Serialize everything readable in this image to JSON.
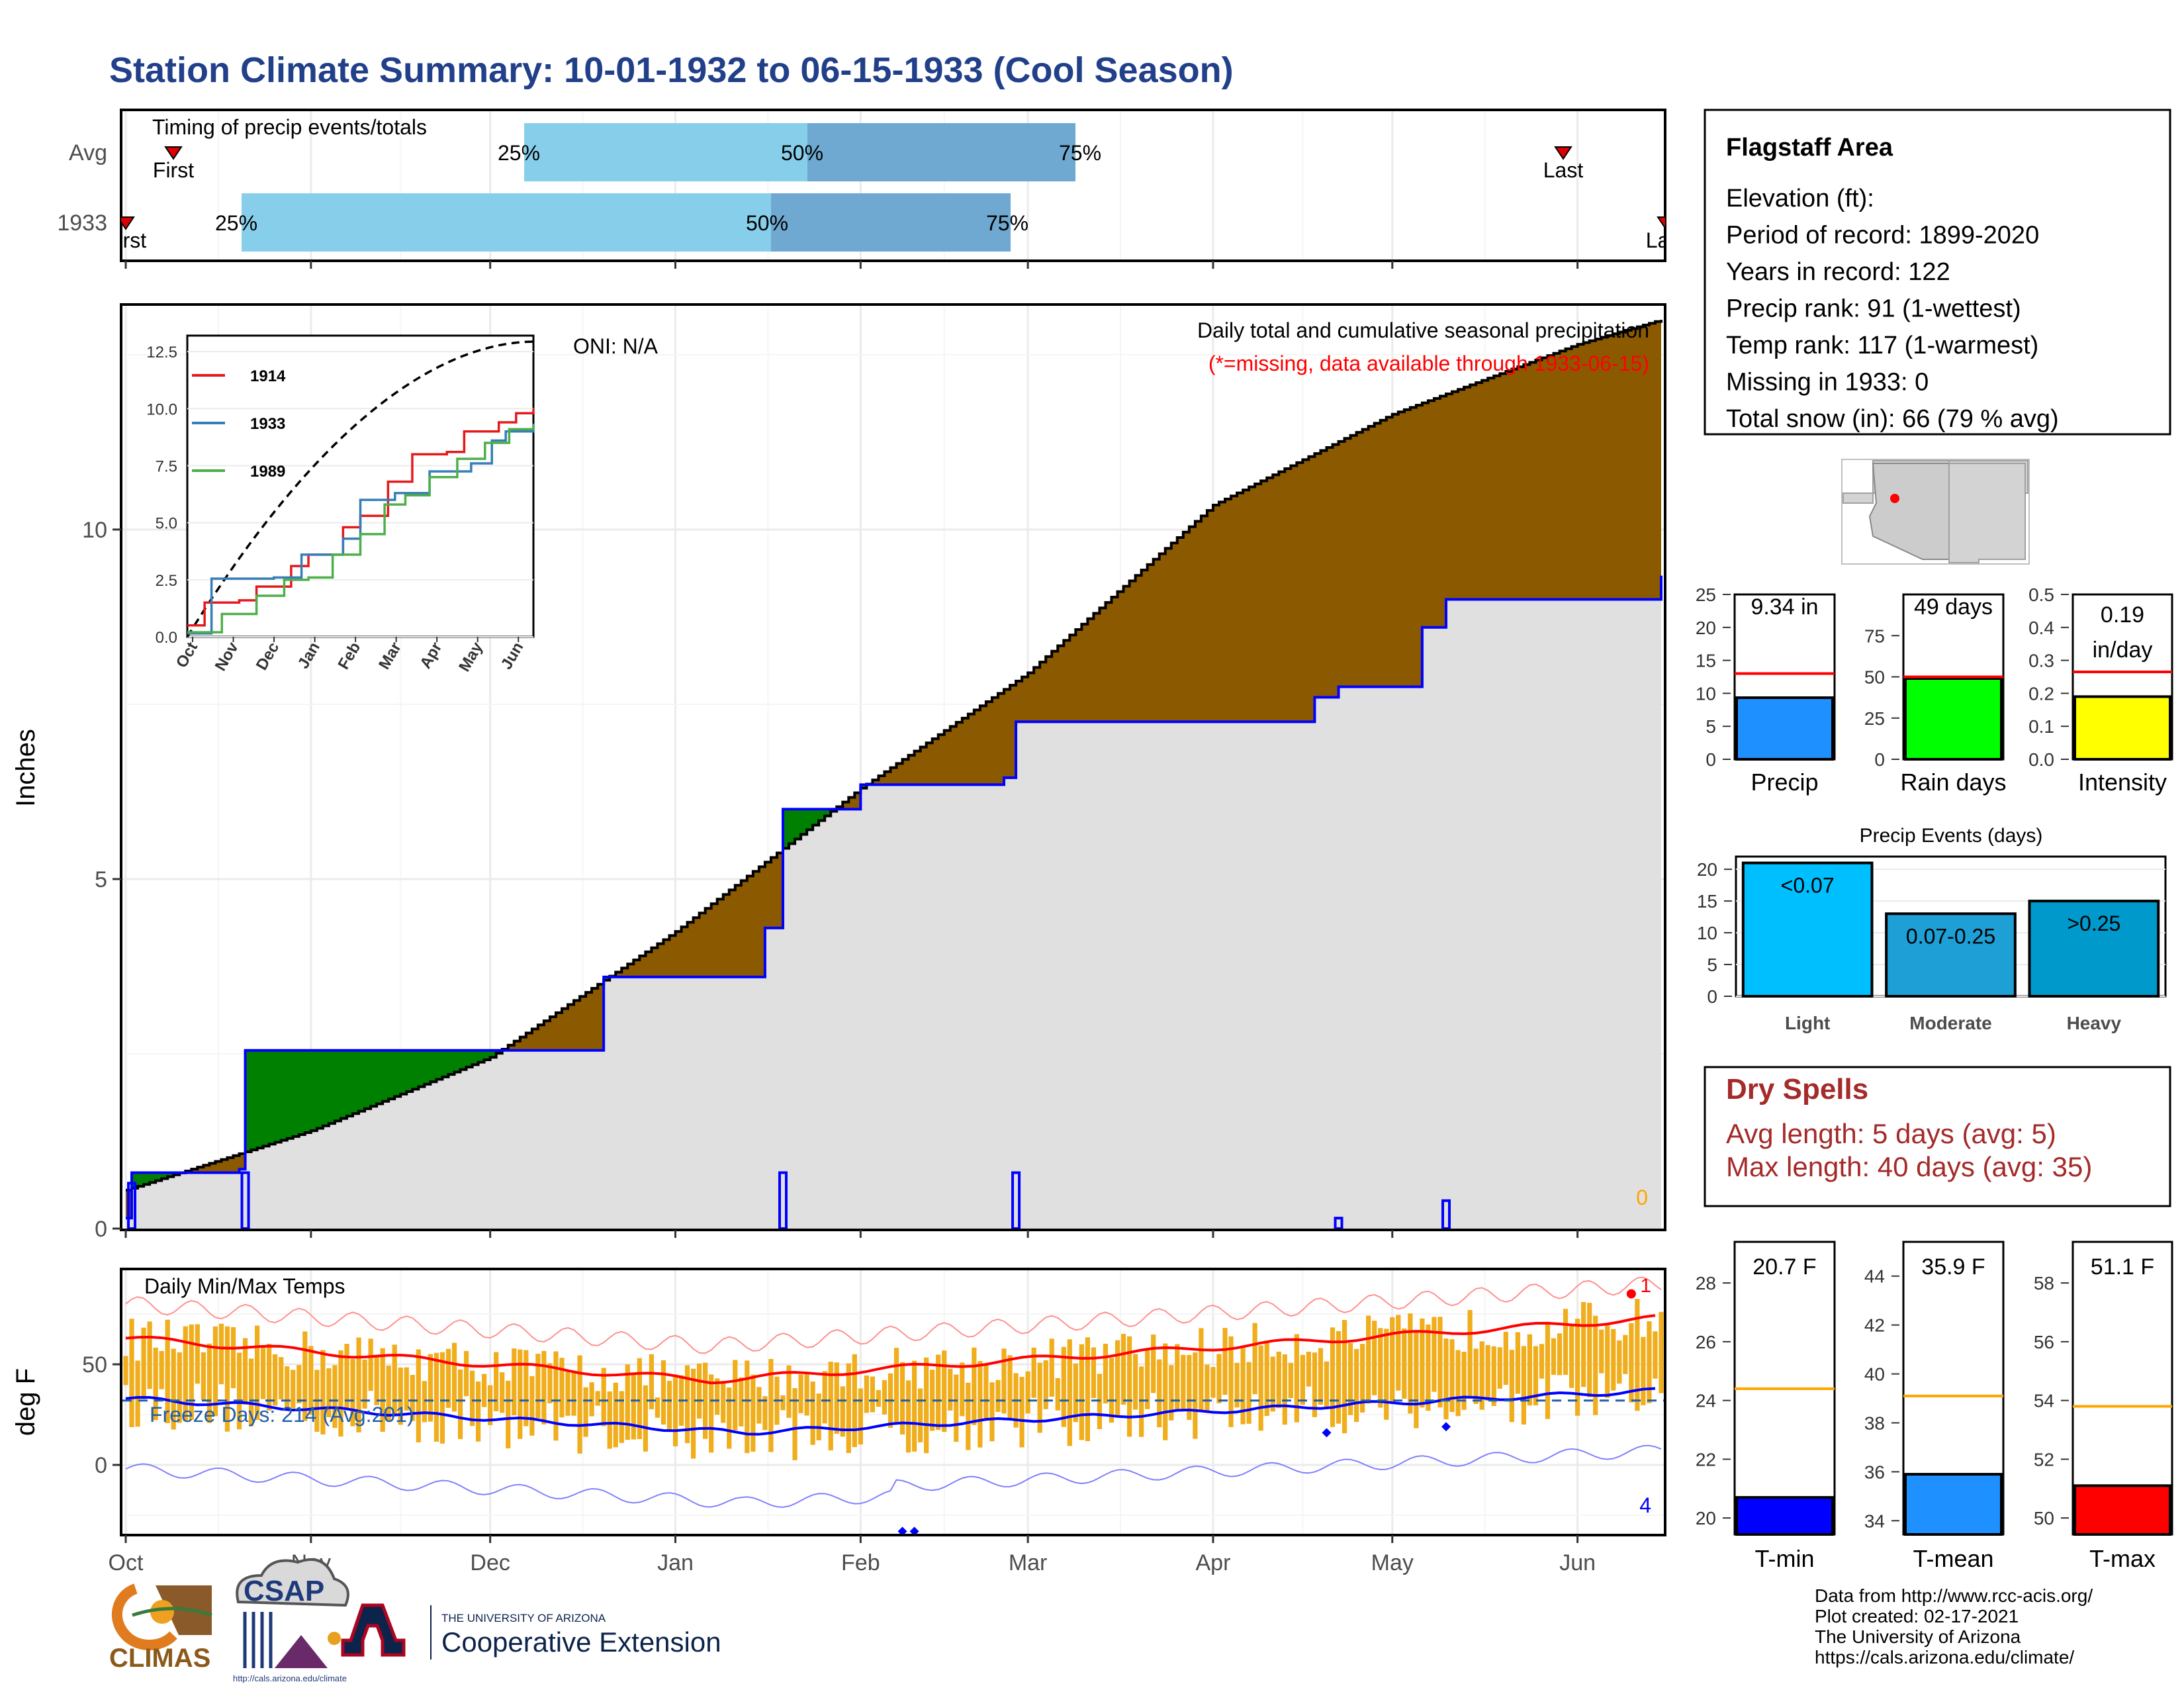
{
  "title": "Station Climate Summary: 10-01-1932 to 06-15-1933 (Cool Season)",
  "colors": {
    "title": "#22408a",
    "brown": "#8b5a00",
    "green": "#008000",
    "gray_fill": "#e0e0e0",
    "blue": "#0000ff",
    "orange": "#f0ad1c",
    "red": "#ff0000",
    "timing_light": "#87ceeb",
    "timing_dark": "#6fa8d0",
    "dry_spell_red": "#a52a2a"
  },
  "months": [
    "Oct",
    "Nov",
    "Dec",
    "Jan",
    "Feb",
    "Mar",
    "Apr",
    "May",
    "Jun"
  ],
  "timing": {
    "title": "Timing of precip events/totals",
    "rows": [
      {
        "label": "Avg",
        "first_label": "First",
        "last_label": "Last",
        "p25": "25%",
        "p50": "50%",
        "p75": "75%"
      },
      {
        "label": "1933",
        "first_label": "First",
        "last_label": "Last",
        "p25": "25%",
        "p50": "50%",
        "p75": "75%"
      }
    ]
  },
  "precip_panel": {
    "ylabel": "Inches",
    "oni": "ONI: N/A",
    "caption": "Daily total and cumulative seasonal precipitation",
    "missing_note": "(*=missing, data available through 1933-06-15)",
    "missing_count": "0"
  },
  "inset": {
    "yticks": [
      "12.5",
      "10.0",
      "7.5",
      "5.0",
      "2.5",
      "0.0"
    ],
    "xticks": [
      "Oct",
      "Nov",
      "Dec",
      "Jan",
      "Feb",
      "Mar",
      "Apr",
      "May",
      "Jun"
    ],
    "legend": [
      "1914",
      "1933",
      "1989"
    ]
  },
  "temp_panel": {
    "ylabel": "deg F",
    "title": "Daily Min/Max Temps",
    "freeze_label": "Freeze Days: 214 (Avg:201)",
    "record_high_count": "1",
    "record_low_count": "4"
  },
  "station": {
    "name": "Flagstaff Area",
    "lines": [
      "Elevation (ft):",
      "Period of record: 1899-2020",
      "Years in record: 122",
      "Precip rank: 91 (1-wettest)",
      "Temp rank: 117 (1-warmest)",
      "Missing in 1933: 0",
      "Total snow (in): 66 (79 % avg)"
    ]
  },
  "summary_bars": [
    {
      "label": "Precip",
      "value_text": "9.34 in",
      "value": 9.34,
      "avg": 13,
      "ymax": 25,
      "ticks": [
        "25",
        "20",
        "15",
        "10",
        "5",
        "0"
      ],
      "color": "#1e90ff"
    },
    {
      "label": "Rain days",
      "value_text": "49 days",
      "value": 49,
      "avg": 50,
      "ymax": 100,
      "ticks": [
        "75",
        "50",
        "25",
        "0"
      ],
      "color": "#00ff00"
    },
    {
      "label": "Intensity",
      "value_text": "0.19 in/day",
      "value": 0.19,
      "avg": 0.265,
      "ymax": 0.5,
      "ticks": [
        "0.5",
        "0.4",
        "0.3",
        "0.2",
        "0.1",
        "0.0"
      ],
      "color": "#ffff00"
    }
  ],
  "precip_events": {
    "title": "Precip Events (days)",
    "categories": [
      "Light",
      "Moderate",
      "Heavy"
    ],
    "bar_labels": [
      "<0.07",
      "0.07-0.25",
      ">0.25"
    ],
    "values": [
      21,
      13,
      15
    ],
    "ticks": [
      "20",
      "15",
      "10",
      "5",
      "0"
    ]
  },
  "dry_spells": {
    "title": "Dry Spells",
    "avg_line": "Avg length: 5 days (avg: 5)",
    "max_line": "Max length: 40 days (avg: 35)"
  },
  "temp_bars": [
    {
      "label": "T-min",
      "value_text": "20.7 F",
      "value": 20.7,
      "avg": 24.4,
      "ticks": [
        "28",
        "26",
        "24",
        "22",
        "20"
      ],
      "color": "#0000ff"
    },
    {
      "label": "T-mean",
      "value_text": "35.9 F",
      "value": 35.9,
      "avg": 39.1,
      "ticks": [
        "44",
        "42",
        "40",
        "38",
        "36",
        "34"
      ],
      "color": "#1e90ff"
    },
    {
      "label": "T-max",
      "value_text": "51.1 F",
      "value": 51.1,
      "avg": 53.8,
      "ticks": [
        "58",
        "56",
        "54",
        "52",
        "50"
      ],
      "color": "#ff0000"
    }
  ],
  "footer": [
    "Data from http://www.rcc-acis.org/",
    "Plot created: 02-17-2021",
    "The University of Arizona",
    "https://cals.arizona.edu/climate/"
  ],
  "logos": {
    "climas": "CLIMAS",
    "csap": "CSAP",
    "csap_url": "http://cals.arizona.edu/climate",
    "ua_small": "THE UNIVERSITY OF ARIZONA",
    "ua_big": "Cooperative Extension"
  },
  "chart_data": {
    "type": "area",
    "title": "Daily total and cumulative seasonal precipitation",
    "ylabel": "Inches",
    "ylim": [
      0,
      13.2
    ],
    "x_start": "1932-10-01",
    "x_end": "1933-06-15",
    "series": [
      {
        "name": "",
        "description": "cumulative average seasonal precipitation",
        "x": [
          "1932-10-01",
          "1932-11-01",
          "1932-12-01",
          "1933-01-01",
          "1933-02-01",
          "1933-03-01",
          "1933-04-01",
          "1933-05-01",
          "1933-06-01",
          "1933-06-15"
        ],
        "values": [
          0.55,
          1.4,
          2.45,
          4.25,
          6.3,
          7.95,
          10.35,
          11.65,
          12.65,
          13.0
        ]
      },
      {
        "name": "1933",
        "description": "cumulative observed seasonal precipitation",
        "x": [
          "1932-10-01",
          "1932-10-02",
          "1932-10-20",
          "1932-10-21",
          "1932-12-20",
          "1933-01-16",
          "1933-01-19",
          "1933-02-01",
          "1933-02-25",
          "1933-02-27",
          "1933-04-18",
          "1933-04-22",
          "1933-05-06",
          "1933-05-10",
          "1933-06-15"
        ],
        "values": [
          0.15,
          0.8,
          0.85,
          2.55,
          3.6,
          4.3,
          6.0,
          6.35,
          6.45,
          7.25,
          7.6,
          7.75,
          8.6,
          9.0,
          9.34
        ]
      }
    ],
    "annotations": [
      "ONI: N/A",
      "(*=missing, data available through 1933-06-15)"
    ]
  }
}
